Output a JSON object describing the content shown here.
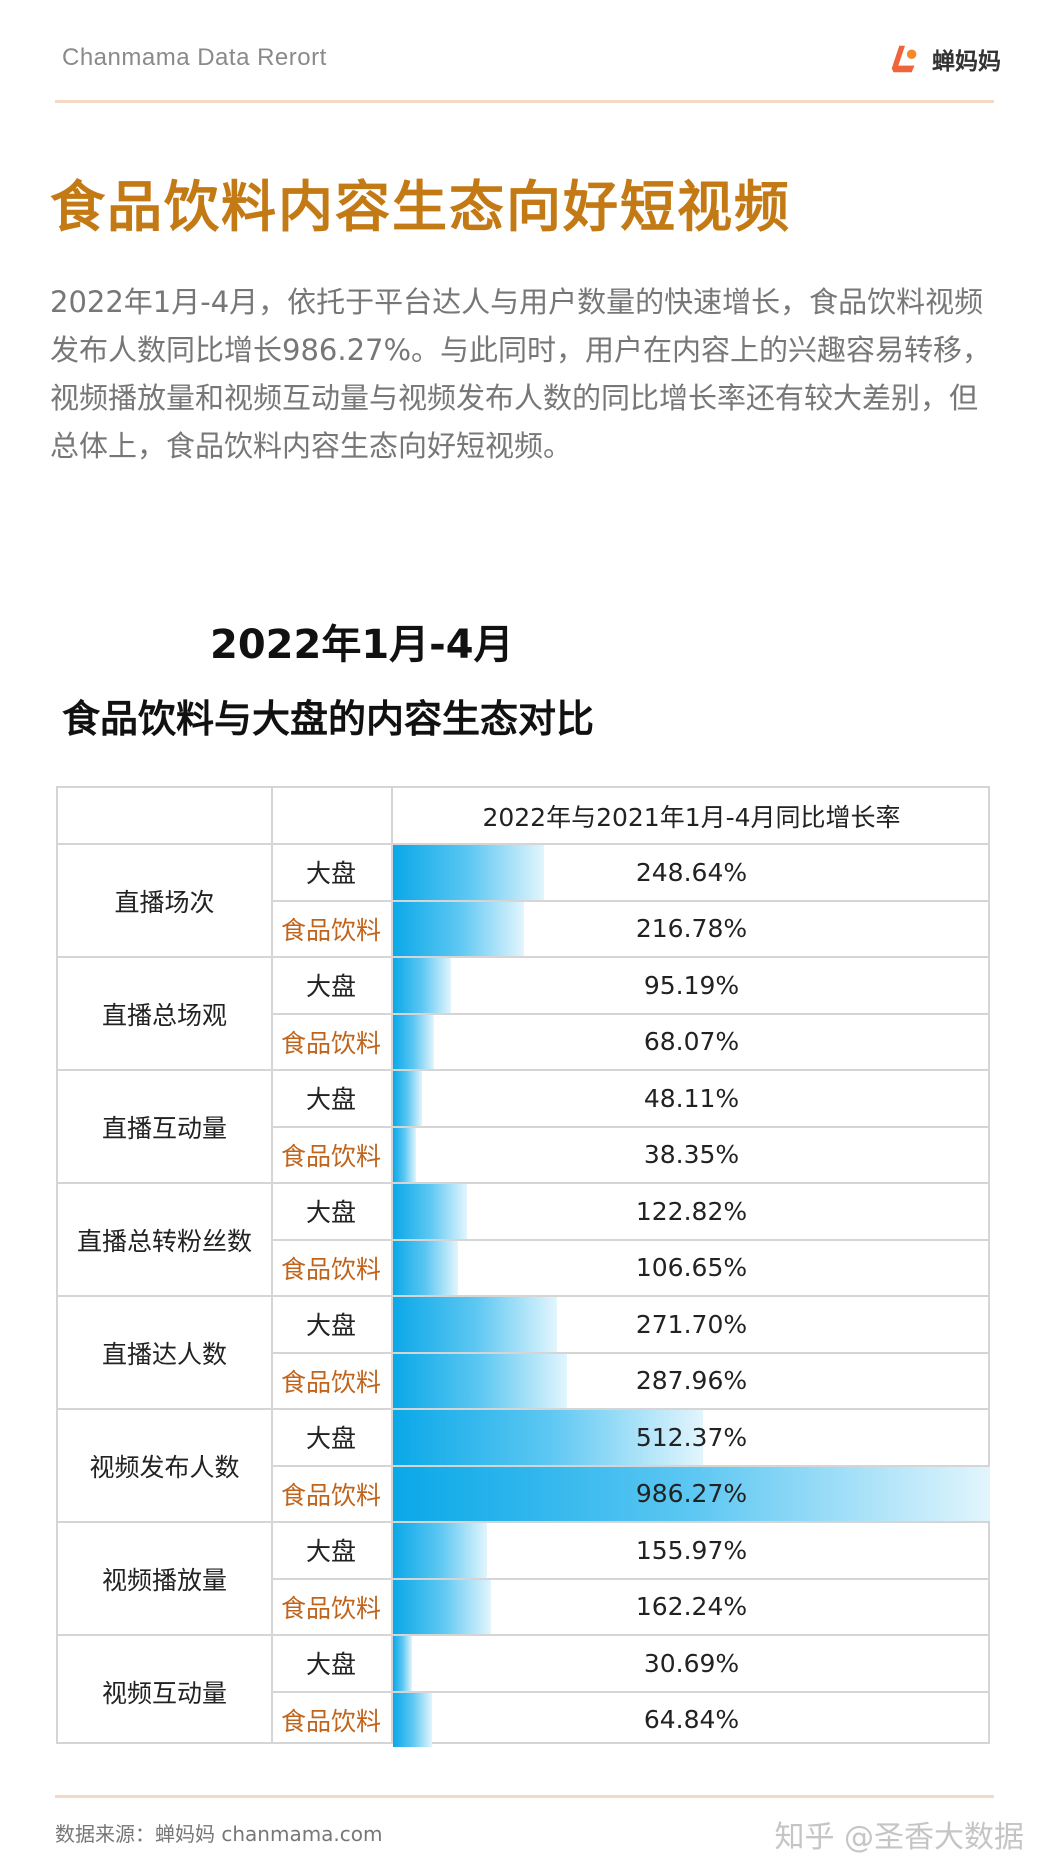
{
  "header": {
    "brand": "Chanmama Data Rerort",
    "logo_text": "蝉妈妈"
  },
  "title": "食品饮料内容生态向好短视频",
  "intro": "2022年1月-4月，依托于平台达人与用户数量的快速增长，食品饮料视频发布人数同比增长986.27%。与此同时，用户在内容上的兴趣容易转移，视频播放量和视频互动量与视频发布人数的同比增长率还有较大差别，但总体上，食品饮料内容生态向好短视频。",
  "chart_data": {
    "type": "table",
    "title": "2022年1月-4月",
    "subtitle": "食品饮料与大盘的内容生态对比",
    "column_header": "2022年与2021年1月-4月同比增长率",
    "series_labels": [
      "大盘",
      "食品饮料"
    ],
    "max_value": 986.27,
    "categories": [
      {
        "name": "直播场次",
        "market": 248.64,
        "market_label": "248.64%",
        "food": 216.78,
        "food_label": "216.78%"
      },
      {
        "name": "直播总场观",
        "market": 95.19,
        "market_label": "95.19%",
        "food": 68.07,
        "food_label": "68.07%"
      },
      {
        "name": "直播互动量",
        "market": 48.11,
        "market_label": "48.11%",
        "food": 38.35,
        "food_label": "38.35%"
      },
      {
        "name": "直播总转粉丝数",
        "market": 122.82,
        "market_label": "122.82%",
        "food": 106.65,
        "food_label": "106.65%"
      },
      {
        "name": "直播达人数",
        "market": 271.7,
        "market_label": "271.70%",
        "food": 287.96,
        "food_label": "287.96%"
      },
      {
        "name": "视频发布人数",
        "market": 512.37,
        "market_label": "512.37%",
        "food": 986.27,
        "food_label": "986.27%"
      },
      {
        "name": "视频播放量",
        "market": 155.97,
        "market_label": "155.97%",
        "food": 162.24,
        "food_label": "162.24%"
      },
      {
        "name": "视频互动量",
        "market": 30.69,
        "market_label": "30.69%",
        "food": 64.84,
        "food_label": "64.84%"
      }
    ]
  },
  "colors": {
    "title": "#c47a14",
    "food_label": "#c0641c",
    "bar_start": "#0aa8e8",
    "bar_end": "#e2f5fd"
  },
  "footer": {
    "source": "数据来源：蝉妈妈 chanmama.com",
    "watermark": "知乎 @圣香大数据"
  },
  "icons": {
    "logo": "chanmama-logo-icon"
  }
}
